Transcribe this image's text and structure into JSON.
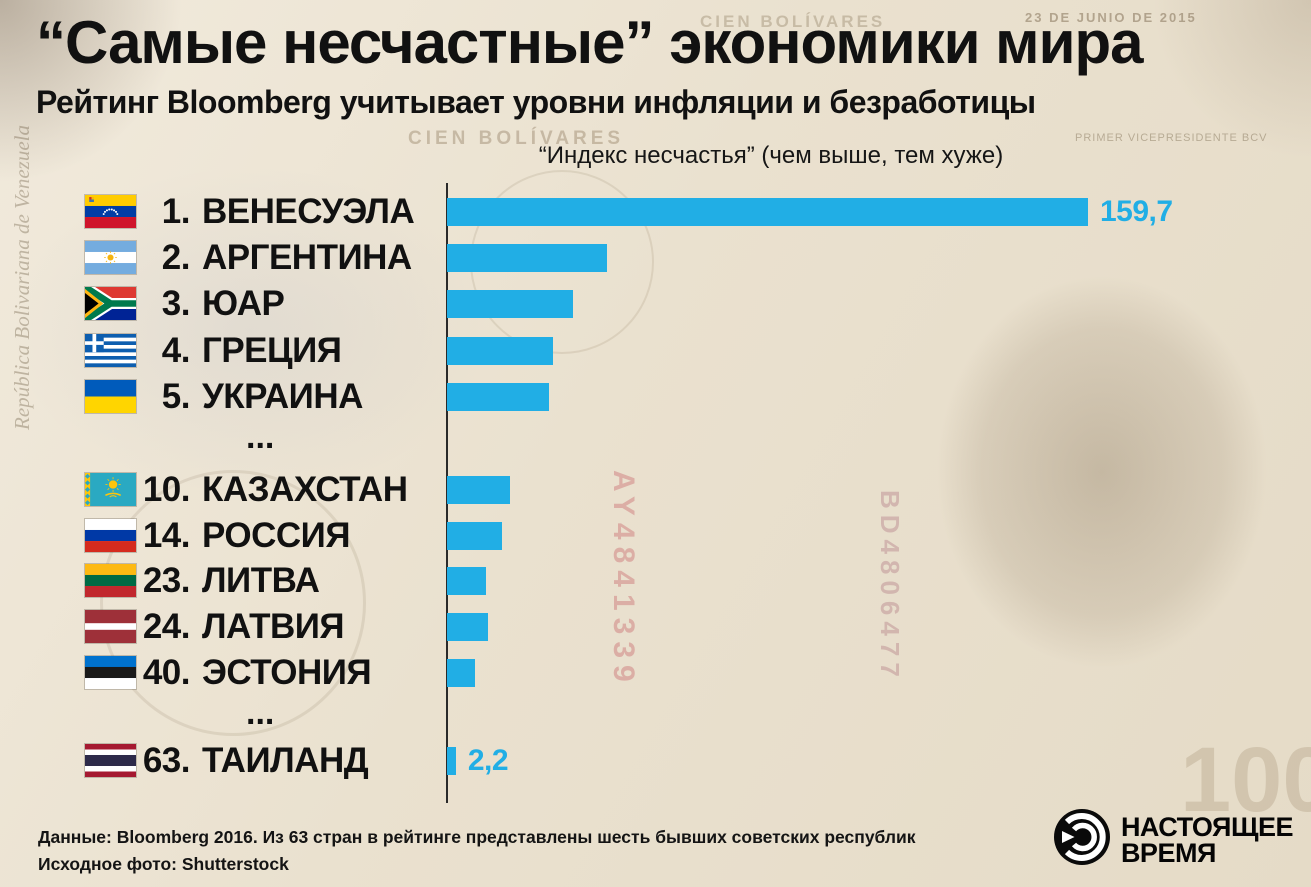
{
  "header": {
    "title": "“Самые несчастные” экономики мира",
    "subtitle": "Рейтинг Bloomberg учитывает уровни инфляции и безработицы"
  },
  "chart_data": {
    "type": "bar",
    "orientation": "horizontal",
    "axis_title": "“Индекс несчастья” (чем выше, тем хуже)",
    "bar_color": "#21AEE5",
    "value_range": [
      0,
      159.7
    ],
    "ellipsis_label": "...",
    "items": [
      {
        "rank": "1.",
        "country": "ВЕНЕСУЭЛА",
        "flag": "venezuela",
        "value": 159.7,
        "value_label": "159,7"
      },
      {
        "rank": "2.",
        "country": "АРГЕНТИНА",
        "flag": "argentina",
        "value": 39.9
      },
      {
        "rank": "3.",
        "country": "ЮАР",
        "flag": "south-africa",
        "value": 31.3
      },
      {
        "rank": "4.",
        "country": "ГРЕЦИЯ",
        "flag": "greece",
        "value": 26.3
      },
      {
        "rank": "5.",
        "country": "УКРАИНА",
        "flag": "ukraine",
        "value": 25.5
      },
      {
        "rank": "10.",
        "country": "КАЗАХСТАН",
        "flag": "kazakhstan",
        "value": 15.8
      },
      {
        "rank": "14.",
        "country": "РОССИЯ",
        "flag": "russia",
        "value": 13.8
      },
      {
        "rank": "23.",
        "country": "ЛИТВА",
        "flag": "lithuania",
        "value": 9.8
      },
      {
        "rank": "24.",
        "country": "ЛАТВИЯ",
        "flag": "latvia",
        "value": 10.1
      },
      {
        "rank": "40.",
        "country": "ЭСТОНИЯ",
        "flag": "estonia",
        "value": 7.0
      },
      {
        "rank": "63.",
        "country": "ТАИЛАНД",
        "flag": "thailand",
        "value": 2.2,
        "value_label": "2,2"
      }
    ]
  },
  "footer": {
    "line1": "Данные: Bloomberg 2016. Из 63 стран в рейтинге представлены шесть бывших советских республик",
    "line2": "Исходное фото: Shutterstock"
  },
  "logo": {
    "line1": "НАСТОЯЩЕЕ",
    "line2": "ВРЕМЯ"
  },
  "background_watermarks": {
    "cien_bolivares": "CIEN BOLÍVARES",
    "cien_bolivares_2": "CIEN BOLÍVARES",
    "big_100": "100",
    "serial_1": "AY4841339",
    "serial_2": "BD4806477",
    "date": "23 DE JUNIO DE 2015",
    "vicepresidente": "PRIMER VICEPRESIDENTE BCV",
    "republica": "República Bolivariana de Venezuela"
  }
}
